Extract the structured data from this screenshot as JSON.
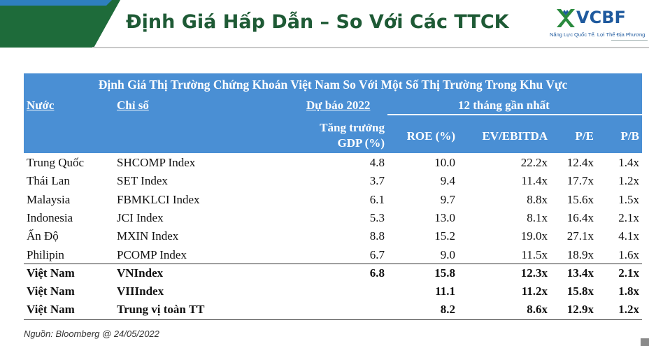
{
  "header": {
    "title": "Định Giá Hấp Dẫn – So Với Các TTCK",
    "logo_text": "VCBF",
    "logo_tagline": "Năng Lực Quốc Tế. Lợi Thế Địa Phương"
  },
  "table": {
    "title": "Định Giá Thị Trường Chứng Khoán Việt Nam So Với Một Số Thị Trường Trong Khu Vực",
    "col_country": "Nước",
    "col_index": "Chỉ số",
    "group_forecast": "Dự báo 2022",
    "group_trailing": "12 tháng gần nhất",
    "col_gdp_line1": "Tăng trưởng",
    "col_gdp_line2": "GDP (%)",
    "col_roe": "ROE (%)",
    "col_ev": "EV/EBITDA",
    "col_pe": "P/E",
    "col_pb": "P/B",
    "rows": [
      {
        "country": "Trung Quốc",
        "index": "SHCOMP Index",
        "gdp": "4.8",
        "roe": "10.0",
        "ev": "22.2x",
        "pe": "12.4x",
        "pb": "1.4x"
      },
      {
        "country": "Thái Lan",
        "index": "SET Index",
        "gdp": "3.7",
        "roe": "9.4",
        "ev": "11.4x",
        "pe": "17.7x",
        "pb": "1.2x"
      },
      {
        "country": "Malaysia",
        "index": "FBMKLCI Index",
        "gdp": "6.1",
        "roe": "9.7",
        "ev": "8.8x",
        "pe": "15.6x",
        "pb": "1.5x"
      },
      {
        "country": "Indonesia",
        "index": "JCI Index",
        "gdp": "5.3",
        "roe": "13.0",
        "ev": "8.1x",
        "pe": "16.4x",
        "pb": "2.1x"
      },
      {
        "country": "Ấn Độ",
        "index": "MXIN Index",
        "gdp": "8.8",
        "roe": "15.2",
        "ev": "19.0x",
        "pe": "27.1x",
        "pb": "4.1x"
      },
      {
        "country": "Philipin",
        "index": "PCOMP Index",
        "gdp": "6.7",
        "roe": "9.0",
        "ev": "11.5x",
        "pe": "18.9x",
        "pb": "1.6x"
      },
      {
        "country": "Việt Nam",
        "index": "VNIndex",
        "gdp": "6.8",
        "roe": "15.8",
        "ev": "12.3x",
        "pe": "13.4x",
        "pb": "2.1x"
      },
      {
        "country": "Việt Nam",
        "index": "VIIIndex",
        "gdp": "",
        "roe": "11.1",
        "ev": "11.2x",
        "pe": "15.8x",
        "pb": "1.8x"
      },
      {
        "country": "Việt Nam",
        "index": "Trung vị toàn TT",
        "gdp": "",
        "roe": "8.2",
        "ev": "8.6x",
        "pe": "12.9x",
        "pb": "1.2x"
      }
    ]
  },
  "source": "Nguồn: Bloomberg @ 24/05/2022",
  "colors": {
    "header_green": "#1e6b3a",
    "title_green": "#1e5a35",
    "table_header_blue": "#4a8fd4",
    "logo_blue": "#1f5a9e"
  }
}
